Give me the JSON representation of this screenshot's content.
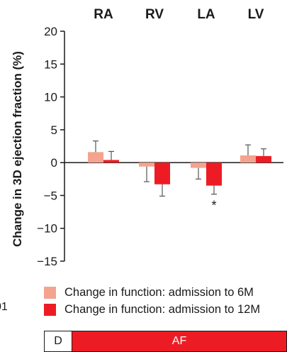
{
  "chart_data": {
    "type": "bar",
    "categories": [
      "RA",
      "RV",
      "LA",
      "LV"
    ],
    "ylabel": "Change in 3D ejection fraction (%)",
    "ylim": [
      -15,
      20
    ],
    "yticks": [
      20,
      15,
      10,
      5,
      0,
      -5,
      -10,
      -15
    ],
    "ytick_labels": [
      "20",
      "15",
      "10",
      "5",
      "0",
      "−5",
      "−10",
      "−15"
    ],
    "series": [
      {
        "name": "Change in function: admission to 6M",
        "color": "#f4a38f",
        "values": [
          1.6,
          -0.6,
          -0.8,
          1.1
        ],
        "errors": [
          1.7,
          2.3,
          1.7,
          1.6
        ]
      },
      {
        "name": "Change in function: admission to 12M",
        "color": "#ed1c24",
        "values": [
          0.4,
          -3.3,
          -3.5,
          1.0
        ],
        "errors": [
          1.3,
          1.8,
          1.3,
          1.1
        ]
      }
    ],
    "annotations": [
      {
        "category": "LA",
        "series": 1,
        "text": "*"
      }
    ],
    "grid": false,
    "legend_position": "bottom-left"
  },
  "side_label": "01",
  "status_bar": {
    "segments": [
      {
        "label": "D",
        "color": "#ffffff"
      },
      {
        "label": "AF",
        "color": "#ed1c24"
      }
    ]
  }
}
